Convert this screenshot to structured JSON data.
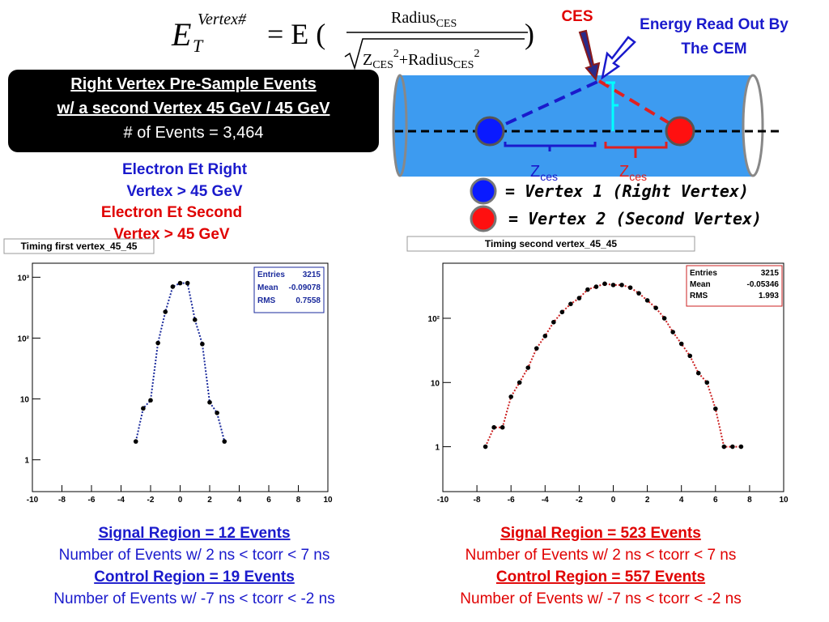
{
  "slide": {
    "formula": {
      "e": "E",
      "sub": "T",
      "sup": "Vertex#",
      "eq": "= E (",
      "num": "Radius",
      "num_sub": "CES",
      "z": "Z",
      "z_sub": "CES",
      "z_sup": "2",
      "plus": "+Radius",
      "r_sub": "CES",
      "r_sup": "2",
      "close": ")"
    },
    "ces": "CES",
    "cem": [
      "Energy Read Out By",
      "The CEM"
    ],
    "box": [
      "Right Vertex Pre-Sample Events ",
      "w/ a second Vertex 45 GeV / 45 GeV",
      "# of Events = 3,464"
    ],
    "cut_right": [
      "Electron Et Right",
      "Vertex > 45 GeV"
    ],
    "cut_second": [
      "Electron Et Second",
      "Vertex > 45 GeV"
    ],
    "zces": [
      {
        "main": "Z",
        "sub": "ces"
      },
      {
        "main": "Z",
        "sub": "ces"
      }
    ],
    "legend": [
      "= Vertex 1 (Right Vertex)",
      "= Vertex 2 (Second Vertex)"
    ],
    "left_notes": [
      "Signal Region = 12 Events",
      "Number of Events w/ 2 ns < tcorr < 7 ns",
      "Control Region = 19 Events",
      "Number of Events w/ -7 ns < tcorr < -2 ns"
    ],
    "right_notes": [
      "Signal Region = 523 Events",
      "Number of Events w/ 2 ns < tcorr < 7 ns",
      "Control Region = 557 Events",
      "Number of Events w/ -7 ns < tcorr < -2 ns"
    ]
  },
  "chart_data": [
    {
      "type": "line",
      "title": "Timing first vertex_45_45",
      "log_y": true,
      "xlim": [
        -10,
        10
      ],
      "xticks": [
        -10,
        -8,
        -6,
        -4,
        -2,
        0,
        2,
        4,
        6,
        8,
        10
      ],
      "ylim": [
        0.3,
        1700
      ],
      "yticks": [
        1,
        10,
        {
          "value": 100,
          "label": "10²"
        },
        {
          "value": 1000,
          "label": "10³"
        }
      ],
      "stats": {
        "labels": [
          "Entries",
          "Mean",
          "RMS"
        ],
        "values": [
          3215,
          -0.09078,
          0.7558
        ]
      },
      "series": [
        {
          "color": "#1a2a9c",
          "x": [
            -3,
            -2.5,
            -2,
            -1.5,
            -1,
            -0.5,
            0,
            0.5,
            1,
            1.5,
            2,
            2.5,
            3
          ],
          "values": [
            2,
            7,
            9.5,
            83,
            270,
            700,
            800,
            800,
            200,
            80,
            8.8,
            5.9,
            2
          ]
        }
      ]
    },
    {
      "type": "line",
      "title": "Timing second vertex_45_45",
      "log_y": true,
      "xlim": [
        -10,
        10
      ],
      "xticks": [
        -10,
        -8,
        -6,
        -4,
        -2,
        0,
        2,
        4,
        6,
        8,
        10
      ],
      "ylim": [
        0.2,
        720
      ],
      "yticks": [
        1,
        10,
        {
          "value": 100,
          "label": "10²"
        }
      ],
      "stats": {
        "labels": [
          "Entries",
          "Mean",
          "RMS"
        ],
        "values": [
          3215,
          -0.05346,
          1.993
        ]
      },
      "series": [
        {
          "color": "#cc2222",
          "x": [
            -7.5,
            -7,
            -6.5,
            -6,
            -5.5,
            -5,
            -4.5,
            -4,
            -3.5,
            -3,
            -2.5,
            -2,
            -1.5,
            -1,
            -0.5,
            0,
            0.5,
            1,
            1.5,
            2,
            2.5,
            3,
            3.5,
            4,
            4.5,
            5,
            5.5,
            6,
            6.5,
            7,
            7.5
          ],
          "values": [
            1,
            2,
            2,
            6,
            10,
            17,
            34,
            53,
            87,
            125,
            167,
            206,
            280,
            310,
            345,
            330,
            330,
            300,
            245,
            190,
            145,
            100,
            61,
            40,
            26,
            14,
            10,
            3.9,
            1,
            1,
            1
          ]
        }
      ]
    }
  ]
}
